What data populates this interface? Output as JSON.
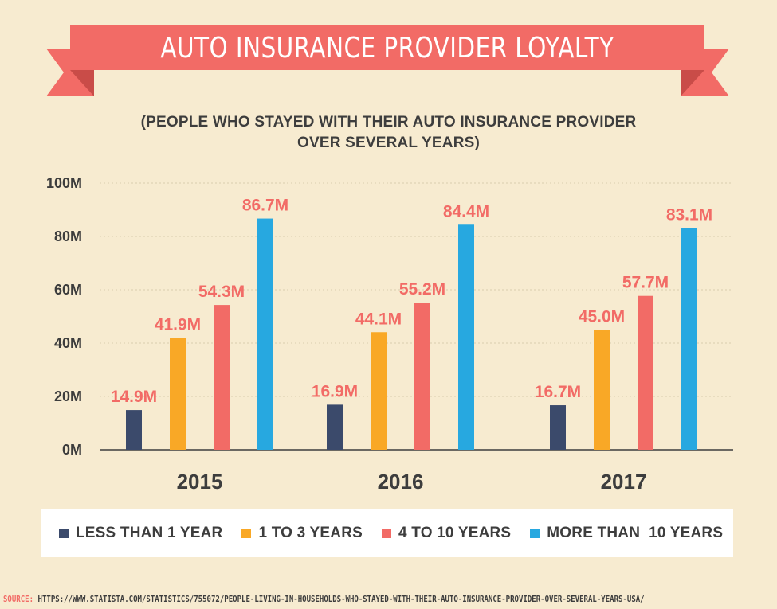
{
  "banner": {
    "title": "AUTO INSURANCE PROVIDER LOYALTY"
  },
  "subtitle": {
    "line1": "(PEOPLE WHO STAYED WITH THEIR AUTO INSURANCE PROVIDER",
    "line2": "OVER SEVERAL YEARS)"
  },
  "colors": {
    "background": "#f7ebd0",
    "banner": "#f26b66",
    "banner_dark": "#d95550",
    "text": "#3d3d3d",
    "label": "#f26b66"
  },
  "chart_data": {
    "type": "bar",
    "title": "",
    "xlabel": "",
    "ylabel": "",
    "ylim": [
      0,
      100
    ],
    "y_ticks": [
      {
        "value": 0,
        "label": "0M"
      },
      {
        "value": 20,
        "label": "20M"
      },
      {
        "value": 40,
        "label": "40M"
      },
      {
        "value": 60,
        "label": "60M"
      },
      {
        "value": 80,
        "label": "80M"
      },
      {
        "value": 100,
        "label": "100M"
      }
    ],
    "grid": "horizontal dotted",
    "categories": [
      "2015",
      "2016",
      "2017"
    ],
    "series": [
      {
        "name": "LESS THAN 1 YEAR",
        "color": "#3b4a6b",
        "values": [
          14.9,
          16.9,
          16.7
        ],
        "labels": [
          "14.9M",
          "16.9M",
          "16.7M"
        ]
      },
      {
        "name": "1 TO 3 YEARS",
        "color": "#f9a826",
        "values": [
          41.9,
          44.1,
          45.0
        ],
        "labels": [
          "41.9M",
          "44.1M",
          "45.0M"
        ]
      },
      {
        "name": "4 TO 10 YEARS",
        "color": "#f26b66",
        "values": [
          54.3,
          55.2,
          57.7
        ],
        "labels": [
          "54.3M",
          "55.2M",
          "57.7M"
        ]
      },
      {
        "name": "MORE THAN  10 YEARS",
        "color": "#27a8e0",
        "values": [
          86.7,
          84.4,
          83.1
        ],
        "labels": [
          "86.7M",
          "84.4M",
          "83.1M"
        ]
      }
    ],
    "legend_position": "bottom"
  },
  "source": {
    "label": "SOURCE:",
    "url": "HTTPS://WWW.STATISTA.COM/STATISTICS/755072/PEOPLE-LIVING-IN-HOUSEHOLDS-WHO-STAYED-WITH-THEIR-AUTO-INSURANCE-PROVIDER-OVER-SEVERAL-YEARS-USA/"
  }
}
